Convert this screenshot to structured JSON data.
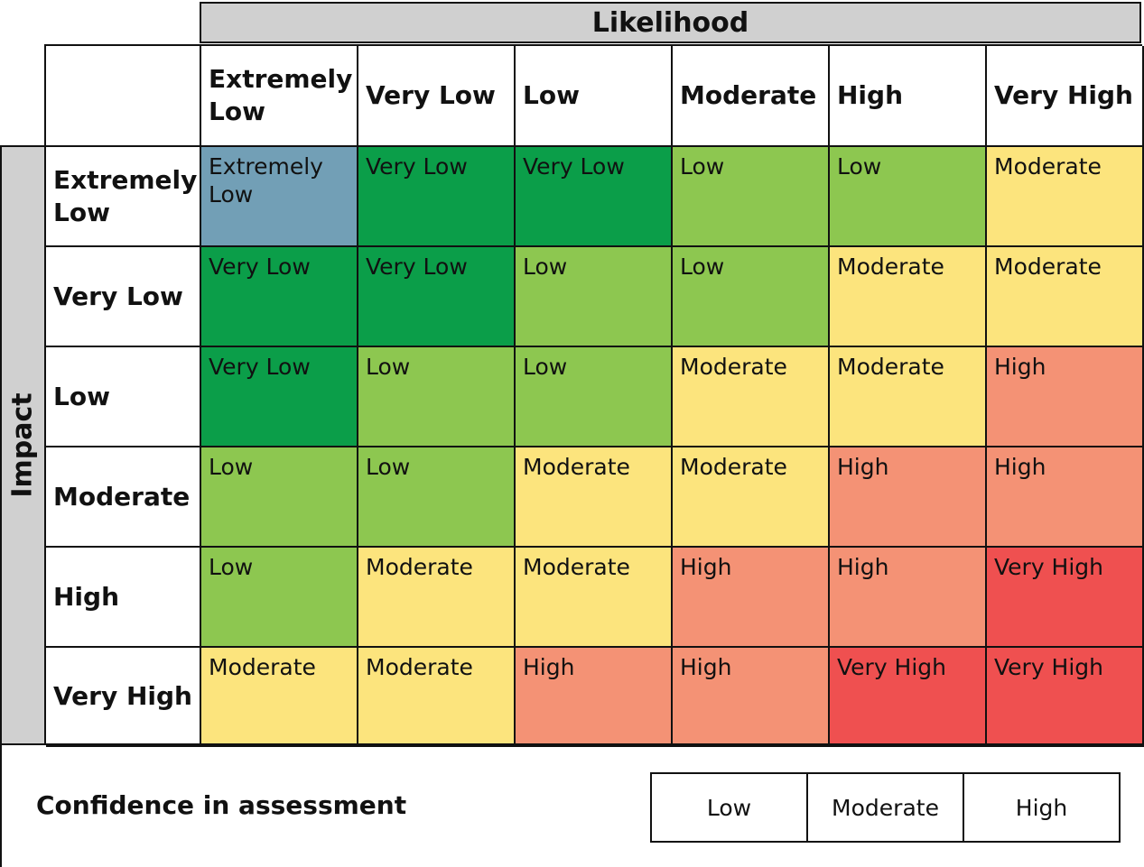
{
  "likelihood_label": "Likelihood",
  "impact_label": "Impact",
  "likelihood_levels": [
    "Extremely Low",
    "Very Low",
    "Low",
    "Moderate",
    "High",
    "Very High"
  ],
  "impact_levels": [
    "Extremely Low",
    "Very Low",
    "Low",
    "Moderate",
    "High",
    "Very High"
  ],
  "matrix": [
    [
      "Extremely Low",
      "Very Low",
      "Very Low",
      "Low",
      "Low",
      "Moderate"
    ],
    [
      "Very Low",
      "Very Low",
      "Low",
      "Low",
      "Moderate",
      "Moderate"
    ],
    [
      "Very Low",
      "Low",
      "Low",
      "Moderate",
      "Moderate",
      "High"
    ],
    [
      "Low",
      "Low",
      "Moderate",
      "Moderate",
      "High",
      "High"
    ],
    [
      "Low",
      "Moderate",
      "Moderate",
      "High",
      "High",
      "Very High"
    ],
    [
      "Moderate",
      "Moderate",
      "High",
      "High",
      "Very High",
      "Very High"
    ]
  ],
  "risk_colors": {
    "Extremely Low": "#729fb6",
    "Very Low": "#0b9e49",
    "Low": "#8dc750",
    "Moderate": "#fce47d",
    "High": "#f49275",
    "Very High": "#ef5050"
  },
  "confidence": {
    "label": "Confidence in assessment",
    "options": [
      "Low",
      "Moderate",
      "High"
    ]
  }
}
